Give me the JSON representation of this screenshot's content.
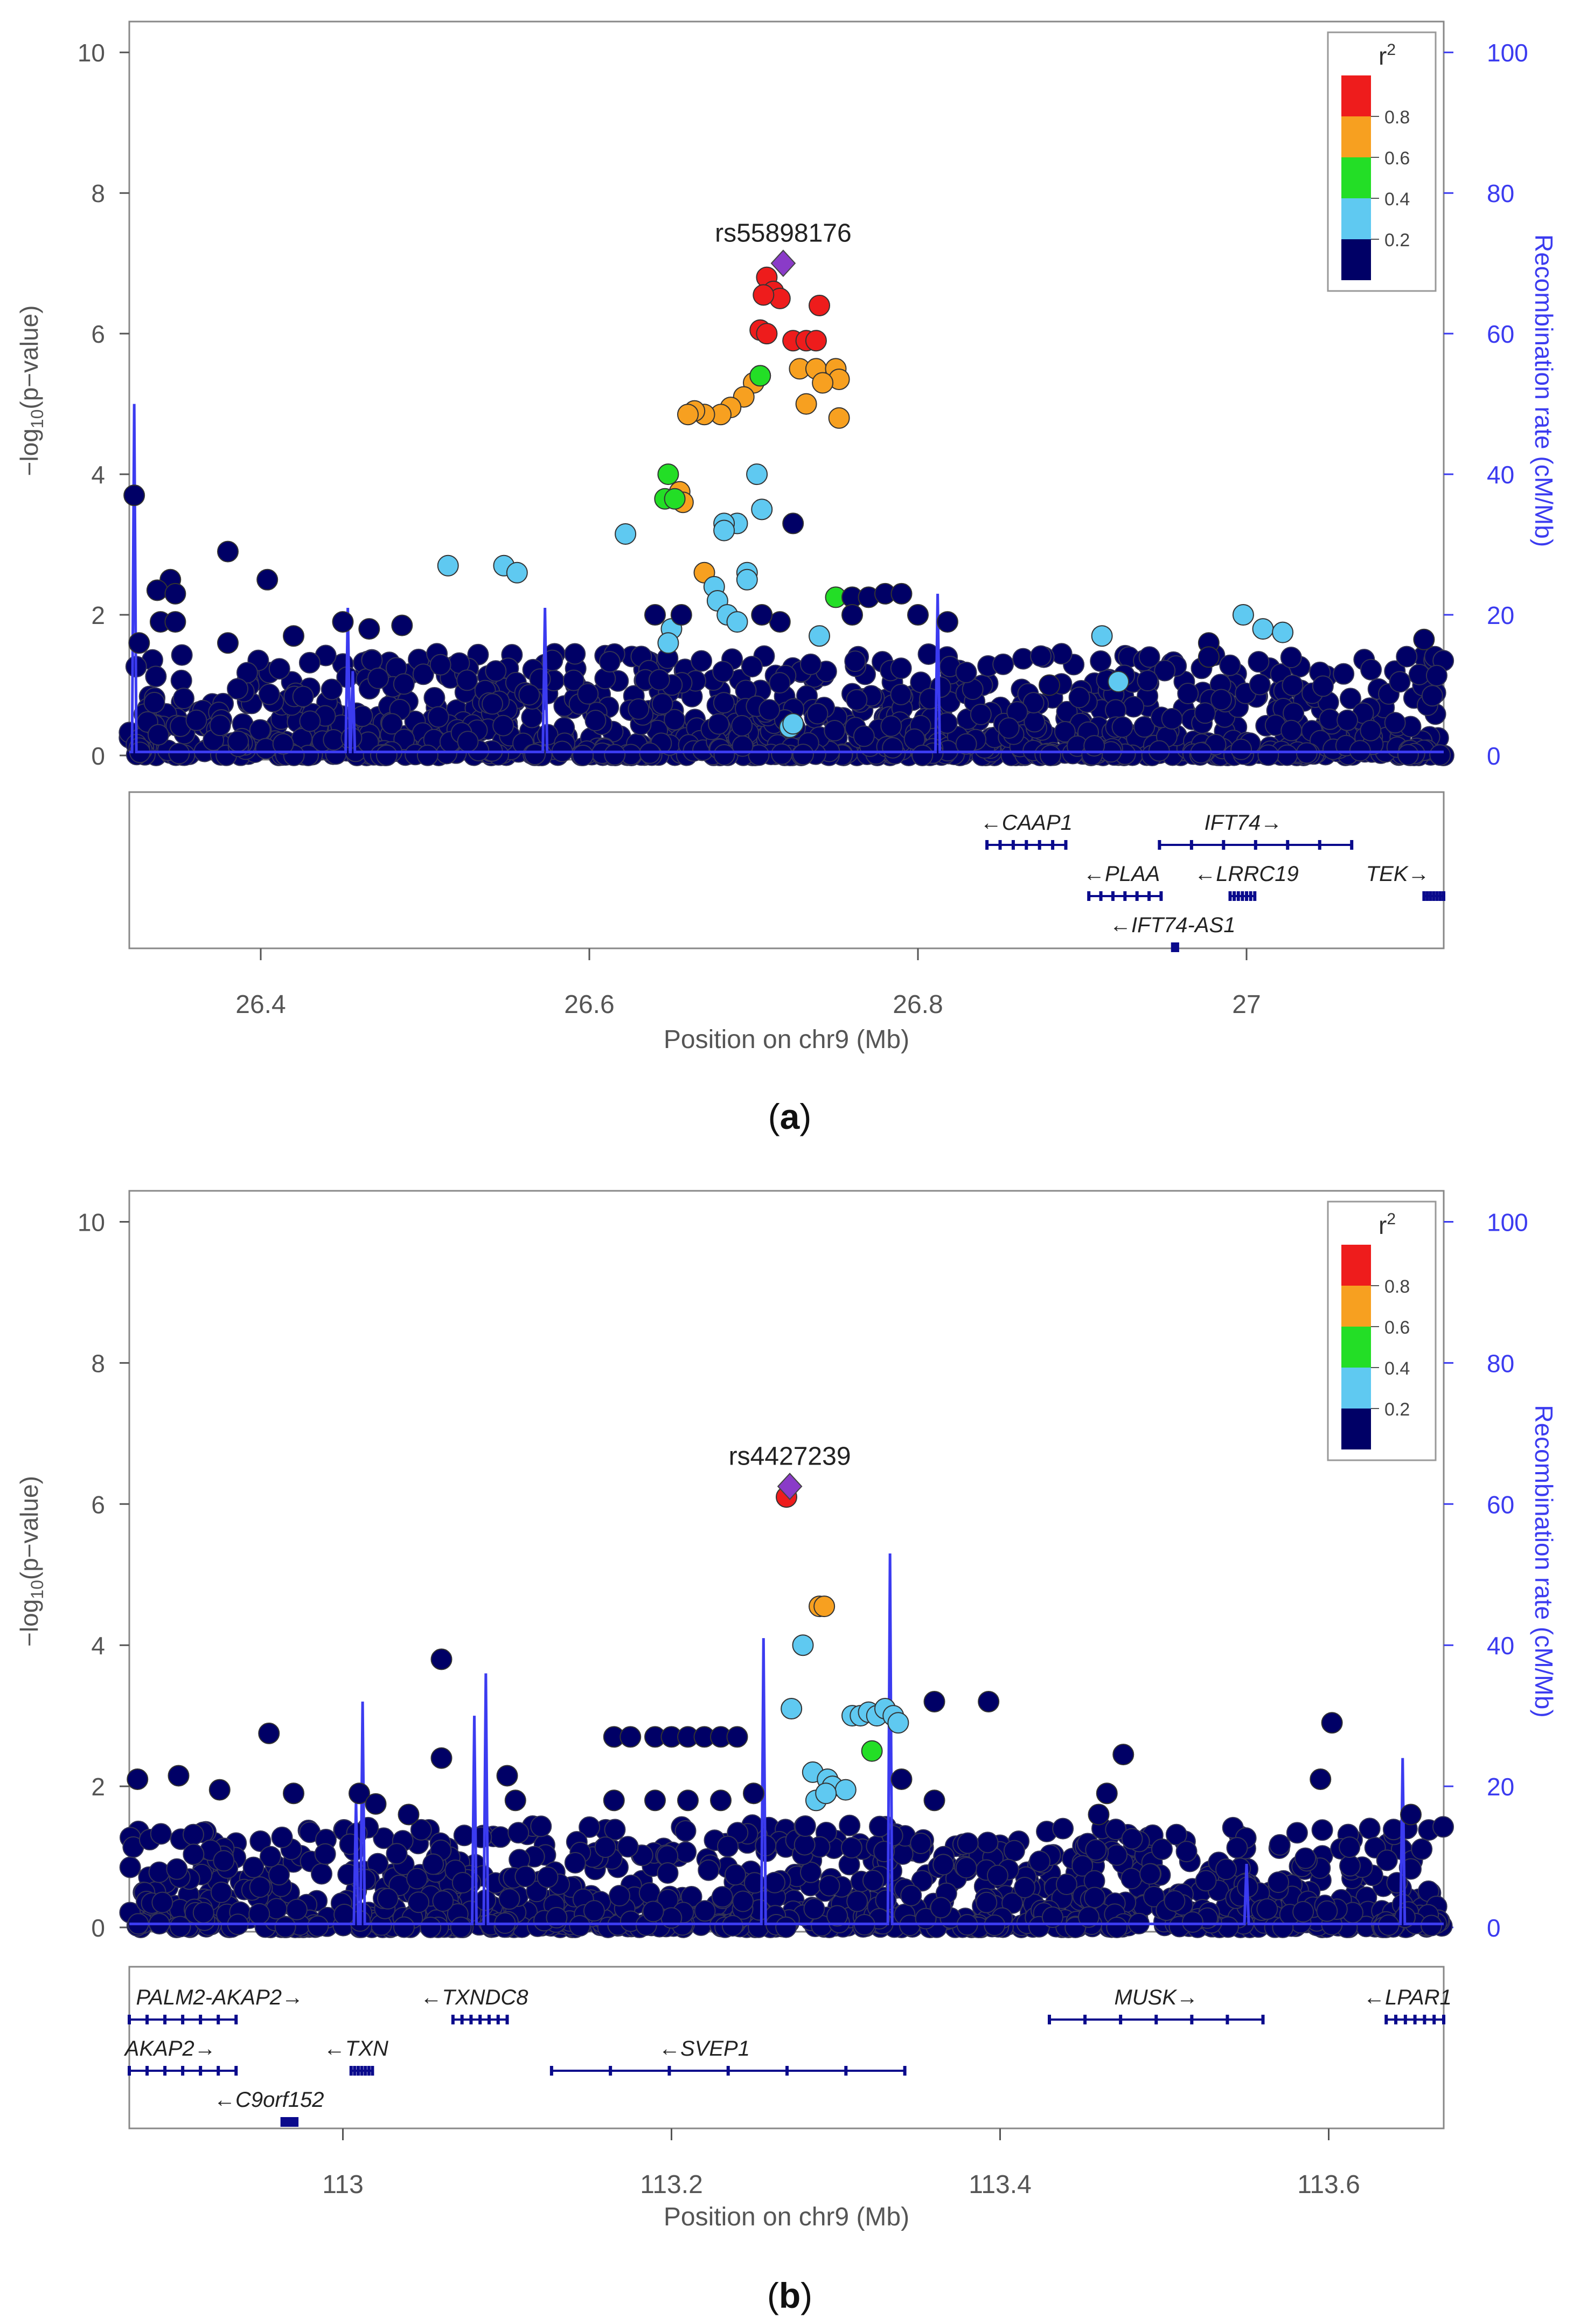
{
  "colors": {
    "r2_bins": [
      "#000066",
      "#5fc9f1",
      "#23de26",
      "#f7a020",
      "#ee1c1c"
    ],
    "lead": "#8a3bc8",
    "recomb": "#3b3bf0",
    "gene": "#0a0a8c",
    "axis": "#555555"
  },
  "chart_data": [
    {
      "type": "scatter",
      "panel_label": "(a)",
      "panel_letter": "a",
      "xlabel": "Position on chr9 (Mb)",
      "ylabel_left": "-log10(p-value)",
      "ylabel_left_parts": [
        "−log",
        "10",
        "(p−value)"
      ],
      "ylabel_right": "Recombination rate (cM/Mb)",
      "xlim": [
        26.32,
        27.12
      ],
      "ylim": [
        0,
        10.5
      ],
      "ylim_right": [
        0,
        105
      ],
      "xticks": [
        26.4,
        26.6,
        26.8,
        27
      ],
      "xtick_labels": [
        "26.4",
        "26.6",
        "26.8",
        "27"
      ],
      "yticks": [
        0,
        2,
        4,
        6,
        8,
        10
      ],
      "yticks_right": [
        0,
        20,
        40,
        60,
        80,
        100
      ],
      "legend": {
        "title": "r",
        "title_sup": "2",
        "labels": [
          "0.8",
          "0.6",
          "0.4",
          "0.2"
        ],
        "position": "top-right"
      },
      "lead_snp": {
        "label": "rs55898176",
        "x": 26.718,
        "y": 7.0
      },
      "points": [
        [
          26.708,
          6.8,
          4
        ],
        [
          26.712,
          6.6,
          4
        ],
        [
          26.716,
          6.5,
          4
        ],
        [
          26.706,
          6.55,
          4
        ],
        [
          26.74,
          6.4,
          4
        ],
        [
          26.704,
          6.05,
          4
        ],
        [
          26.708,
          6.0,
          4
        ],
        [
          26.724,
          5.9,
          4
        ],
        [
          26.732,
          5.9,
          4
        ],
        [
          26.738,
          5.9,
          4
        ],
        [
          26.728,
          5.5,
          3
        ],
        [
          26.738,
          5.5,
          3
        ],
        [
          26.75,
          5.5,
          3
        ],
        [
          26.752,
          5.35,
          3
        ],
        [
          26.742,
          5.3,
          3
        ],
        [
          26.704,
          5.4,
          3
        ],
        [
          26.7,
          5.3,
          3
        ],
        [
          26.694,
          5.1,
          3
        ],
        [
          26.686,
          4.95,
          3
        ],
        [
          26.68,
          4.85,
          3
        ],
        [
          26.67,
          4.85,
          3
        ],
        [
          26.664,
          4.9,
          3
        ],
        [
          26.66,
          4.85,
          3
        ],
        [
          26.732,
          5.0,
          3
        ],
        [
          26.752,
          4.8,
          3
        ],
        [
          26.655,
          3.75,
          3
        ],
        [
          26.657,
          3.6,
          3
        ],
        [
          26.67,
          2.6,
          3
        ],
        [
          26.648,
          4.0,
          2
        ],
        [
          26.646,
          3.65,
          2
        ],
        [
          26.652,
          3.65,
          2
        ],
        [
          26.704,
          5.4,
          2
        ],
        [
          26.75,
          2.25,
          2
        ],
        [
          26.702,
          4.0,
          1
        ],
        [
          26.705,
          3.5,
          1
        ],
        [
          26.69,
          3.3,
          1
        ],
        [
          26.682,
          3.3,
          1
        ],
        [
          26.682,
          3.2,
          1
        ],
        [
          26.622,
          3.15,
          1
        ],
        [
          26.514,
          2.7,
          1
        ],
        [
          26.548,
          2.7,
          1
        ],
        [
          26.556,
          2.6,
          1
        ],
        [
          26.696,
          2.6,
          1
        ],
        [
          26.696,
          2.5,
          1
        ],
        [
          26.676,
          2.4,
          1
        ],
        [
          26.678,
          2.2,
          1
        ],
        [
          26.684,
          2.0,
          1
        ],
        [
          26.69,
          1.9,
          1
        ],
        [
          26.65,
          1.8,
          1
        ],
        [
          26.648,
          1.6,
          1
        ],
        [
          26.74,
          1.7,
          1
        ],
        [
          26.912,
          1.7,
          1
        ],
        [
          26.922,
          1.05,
          1
        ],
        [
          26.998,
          2.0,
          1
        ],
        [
          27.01,
          1.8,
          1
        ],
        [
          27.022,
          1.75,
          1
        ],
        [
          26.722,
          0.4,
          1
        ],
        [
          26.724,
          0.45,
          1
        ],
        [
          26.323,
          3.7,
          0
        ],
        [
          26.38,
          2.9,
          0
        ],
        [
          26.404,
          2.5,
          0
        ],
        [
          26.345,
          2.5,
          0
        ],
        [
          26.337,
          2.35,
          0
        ],
        [
          26.339,
          1.9,
          0
        ],
        [
          26.348,
          1.9,
          0
        ],
        [
          26.348,
          2.3,
          0
        ],
        [
          26.45,
          1.9,
          0
        ],
        [
          26.466,
          1.8,
          0
        ],
        [
          26.486,
          1.85,
          0
        ],
        [
          26.724,
          3.3,
          0
        ],
        [
          26.76,
          2.25,
          0
        ],
        [
          26.77,
          2.25,
          0
        ],
        [
          26.78,
          2.3,
          0
        ],
        [
          26.79,
          2.3,
          0
        ],
        [
          26.716,
          1.9,
          0
        ],
        [
          26.705,
          2.0,
          0
        ],
        [
          26.64,
          2.0,
          0
        ],
        [
          26.656,
          2.0,
          0
        ],
        [
          26.76,
          2.0,
          0
        ],
        [
          26.8,
          2.0,
          0
        ],
        [
          26.818,
          1.9,
          0
        ],
        [
          26.88,
          1.0,
          0
        ],
        [
          26.977,
          1.6,
          0
        ],
        [
          26.977,
          1.4,
          0
        ],
        [
          27.108,
          1.65,
          0
        ],
        [
          26.326,
          1.6,
          0
        ],
        [
          26.38,
          1.6,
          0
        ],
        [
          26.42,
          1.7,
          0
        ]
      ],
      "background_points_note": "dense cloud of r2<0.2 SNPs with -log10(p) between 0 and ~1.5 spanning the whole window",
      "recomb_peaks": [
        [
          26.323,
          50
        ],
        [
          26.453,
          21
        ],
        [
          26.456,
          12
        ],
        [
          26.573,
          21
        ],
        [
          26.812,
          23
        ]
      ],
      "genes": [
        {
          "name": "CAAP1",
          "start": 26.842,
          "end": 26.89,
          "dir": "left",
          "row": 0,
          "label_x": 26.866
        },
        {
          "name": "IFT74",
          "start": 26.947,
          "end": 27.064,
          "dir": "right",
          "row": 0,
          "label_x": 26.998
        },
        {
          "name": "PLAA",
          "start": 26.904,
          "end": 26.948,
          "dir": "left",
          "row": 1,
          "label_x": 26.924
        },
        {
          "name": "LRRC19",
          "start": 26.99,
          "end": 27.005,
          "dir": "left",
          "row": 1,
          "label_x": 27.0
        },
        {
          "name": "TEK",
          "start": 27.108,
          "end": 27.14,
          "dir": "right",
          "row": 1,
          "label_x": 27.092
        },
        {
          "name": "IFT74-AS1",
          "start": 26.955,
          "end": 26.958,
          "dir": "left",
          "row": 2,
          "label_x": 26.955
        }
      ]
    },
    {
      "type": "scatter",
      "panel_label": "(b)",
      "panel_letter": "b",
      "xlabel": "Position on chr9 (Mb)",
      "ylabel_left": "-log10(p-value)",
      "ylabel_left_parts": [
        "−log",
        "10",
        "(p−value)"
      ],
      "ylabel_right": "Recombination rate (cM/Mb)",
      "xlim": [
        112.87,
        113.67
      ],
      "ylim": [
        0,
        10.5
      ],
      "ylim_right": [
        0,
        105
      ],
      "xticks": [
        113,
        113.2,
        113.4,
        113.6
      ],
      "xtick_labels": [
        "113",
        "113.2",
        "113.4",
        "113.6"
      ],
      "yticks": [
        0,
        2,
        4,
        6,
        8,
        10
      ],
      "yticks_right": [
        0,
        20,
        40,
        60,
        80,
        100
      ],
      "legend": {
        "title": "r",
        "title_sup": "2",
        "labels": [
          "0.8",
          "0.6",
          "0.4",
          "0.2"
        ],
        "position": "top-right"
      },
      "lead_snp": {
        "label": "rs4427239",
        "x": 113.272,
        "y": 6.25
      },
      "points": [
        [
          113.27,
          6.1,
          4
        ],
        [
          113.29,
          4.55,
          3
        ],
        [
          113.293,
          4.55,
          3
        ],
        [
          113.322,
          2.5,
          2
        ],
        [
          113.28,
          4.0,
          1
        ],
        [
          113.273,
          3.1,
          1
        ],
        [
          113.31,
          3.0,
          1
        ],
        [
          113.315,
          3.0,
          1
        ],
        [
          113.32,
          3.05,
          1
        ],
        [
          113.325,
          3.0,
          1
        ],
        [
          113.33,
          3.1,
          1
        ],
        [
          113.335,
          3.0,
          1
        ],
        [
          113.338,
          2.9,
          1
        ],
        [
          113.286,
          2.2,
          1
        ],
        [
          113.295,
          2.1,
          1
        ],
        [
          113.288,
          1.8,
          1
        ],
        [
          113.298,
          2.0,
          1
        ],
        [
          113.306,
          1.95,
          1
        ],
        [
          113.294,
          1.9,
          1
        ],
        [
          113.06,
          3.8,
          0
        ],
        [
          113.393,
          3.2,
          0
        ],
        [
          113.36,
          3.2,
          0
        ],
        [
          112.955,
          2.75,
          0
        ],
        [
          113.602,
          2.9,
          0
        ],
        [
          113.06,
          2.4,
          0
        ],
        [
          113.475,
          2.45,
          0
        ],
        [
          113.165,
          2.7,
          0
        ],
        [
          113.175,
          2.7,
          0
        ],
        [
          113.19,
          2.7,
          0
        ],
        [
          113.2,
          2.7,
          0
        ],
        [
          113.21,
          2.7,
          0
        ],
        [
          113.22,
          2.7,
          0
        ],
        [
          113.23,
          2.7,
          0
        ],
        [
          113.24,
          2.7,
          0
        ],
        [
          112.875,
          2.1,
          0
        ],
        [
          112.9,
          2.15,
          0
        ],
        [
          112.925,
          1.95,
          0
        ],
        [
          113.34,
          2.1,
          0
        ],
        [
          113.36,
          1.8,
          0
        ],
        [
          113.04,
          1.6,
          0
        ],
        [
          113.01,
          1.9,
          0
        ],
        [
          113.02,
          1.75,
          0
        ],
        [
          113.1,
          2.15,
          0
        ],
        [
          113.105,
          1.8,
          0
        ],
        [
          113.165,
          1.8,
          0
        ],
        [
          113.19,
          1.8,
          0
        ],
        [
          113.21,
          1.8,
          0
        ],
        [
          113.23,
          1.8,
          0
        ],
        [
          113.25,
          1.9,
          0
        ],
        [
          113.595,
          2.1,
          0
        ],
        [
          113.465,
          1.9,
          0
        ],
        [
          113.46,
          1.6,
          0
        ],
        [
          113.65,
          1.6,
          0
        ],
        [
          112.97,
          1.9,
          0
        ]
      ],
      "background_points_note": "dense cloud of r2<0.2 SNPs with -log10(p) between 0 and ~1.5 spanning the whole window",
      "recomb_peaks": [
        [
          113.012,
          32
        ],
        [
          113.008,
          18
        ],
        [
          113.08,
          30
        ],
        [
          113.087,
          36
        ],
        [
          113.256,
          41
        ],
        [
          113.333,
          53
        ],
        [
          113.645,
          24
        ],
        [
          113.55,
          9
        ]
      ],
      "genes": [
        {
          "name": "PALM2-AKAP2",
          "start": 112.87,
          "end": 112.935,
          "dir": "right",
          "row": 0,
          "label_x": 112.925
        },
        {
          "name": "TXNDC8",
          "start": 113.067,
          "end": 113.1,
          "dir": "left",
          "row": 0,
          "label_x": 113.08
        },
        {
          "name": "MUSK",
          "start": 113.43,
          "end": 113.56,
          "dir": "right",
          "row": 0,
          "label_x": 113.495
        },
        {
          "name": "LPAR1",
          "start": 113.635,
          "end": 113.68,
          "dir": "left",
          "row": 0,
          "label_x": 113.648
        },
        {
          "name": "AKAP2",
          "start": 112.87,
          "end": 112.935,
          "dir": "right",
          "row": 1,
          "label_x": 112.895
        },
        {
          "name": "TXN",
          "start": 113.005,
          "end": 113.018,
          "dir": "left",
          "row": 1,
          "label_x": 113.008
        },
        {
          "name": "SVEP1",
          "start": 113.127,
          "end": 113.342,
          "dir": "left",
          "row": 1,
          "label_x": 113.22
        },
        {
          "name": "C9orf152",
          "start": 112.963,
          "end": 112.972,
          "dir": "left",
          "row": 2,
          "label_x": 112.955
        }
      ]
    }
  ]
}
